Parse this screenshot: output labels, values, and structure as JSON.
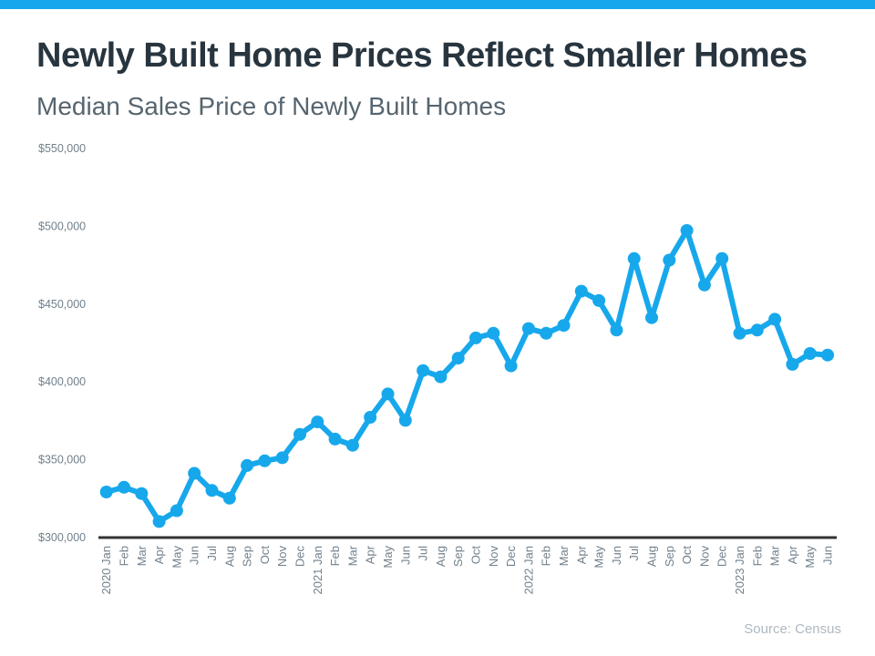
{
  "header": {
    "title": "Newly Built Home Prices Reflect Smaller Homes",
    "subtitle": "Median Sales Price of Newly Built Homes"
  },
  "footer": {
    "source": "Source: Census"
  },
  "colors": {
    "accent_blue": "#17a8ec",
    "title_text": "#28353f",
    "subtitle_text": "#56656f",
    "axis_text": "#71808c",
    "axis_line": "#333333",
    "source_text": "#aeb9c2"
  },
  "chart_data": {
    "type": "line",
    "title": "Newly Built Home Prices Reflect Smaller Homes",
    "subtitle": "Median Sales Price of Newly Built Homes",
    "xlabel": "",
    "ylabel": "",
    "grid": false,
    "legend": false,
    "marker": "circle",
    "line_color": "#17a8ec",
    "ylim": [
      300000,
      550000
    ],
    "yticks": {
      "values": [
        300000,
        350000,
        400000,
        450000,
        500000,
        550000
      ],
      "labels": [
        "$300,000",
        "$350,000",
        "$400,000",
        "$450,000",
        "$500,000",
        "$550,000"
      ]
    },
    "categories": [
      "2020 Jan",
      "Feb",
      "Mar",
      "Apr",
      "May",
      "Jun",
      "Jul",
      "Aug",
      "Sep",
      "Oct",
      "Nov",
      "Dec",
      "2021 Jan",
      "Feb",
      "Mar",
      "Apr",
      "May",
      "Jun",
      "Jul",
      "Aug",
      "Sep",
      "Oct",
      "Nov",
      "Dec",
      "2022 Jan",
      "Feb",
      "Mar",
      "Apr",
      "May",
      "Jun",
      "Jul",
      "Aug",
      "Sep",
      "Oct",
      "Nov",
      "Dec",
      "2023 Jan",
      "Feb",
      "Mar",
      "Apr",
      "May",
      "Jun"
    ],
    "series": [
      {
        "name": "Median Sales Price of Newly Built Homes",
        "values": [
          329000,
          332000,
          328000,
          310000,
          317000,
          341000,
          330000,
          325000,
          346000,
          349000,
          351000,
          366000,
          374000,
          363000,
          359000,
          377000,
          392000,
          375000,
          407000,
          403000,
          415000,
          428000,
          431000,
          410000,
          434000,
          431000,
          436000,
          458000,
          452000,
          433000,
          479000,
          441000,
          478000,
          497000,
          462000,
          479000,
          431000,
          433000,
          440000,
          411000,
          418000,
          417000
        ]
      }
    ],
    "source": "Source: Census"
  }
}
